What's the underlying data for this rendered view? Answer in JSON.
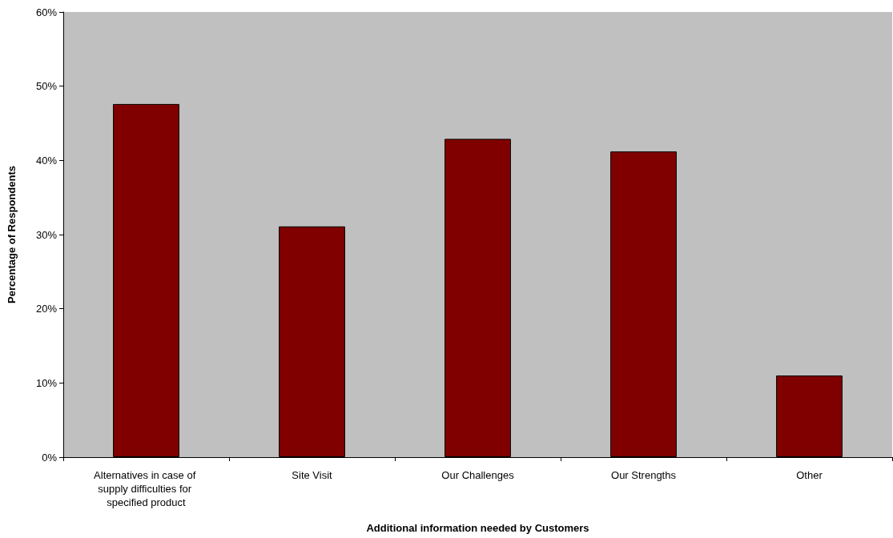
{
  "chart_data": {
    "type": "bar",
    "xlabel": "Additional information needed by Customers",
    "ylabel": "Percentage of Respondents",
    "categories": [
      "Alternatives in case of supply difficulties for specified product",
      "Site Visit",
      "Our Challenges",
      "Our Strengths",
      "Other"
    ],
    "values": [
      47.6,
      31.1,
      42.9,
      41.2,
      11.0
    ],
    "color": "#800000",
    "ylim": [
      0,
      60
    ],
    "yticks": [
      {
        "value": 0,
        "label": "0%"
      },
      {
        "value": 10,
        "label": "10%"
      },
      {
        "value": 20,
        "label": "20%"
      },
      {
        "value": 30,
        "label": "30%"
      },
      {
        "value": 40,
        "label": "40%"
      },
      {
        "value": 50,
        "label": "50%"
      },
      {
        "value": 60,
        "label": "60%"
      }
    ],
    "grid": false
  }
}
